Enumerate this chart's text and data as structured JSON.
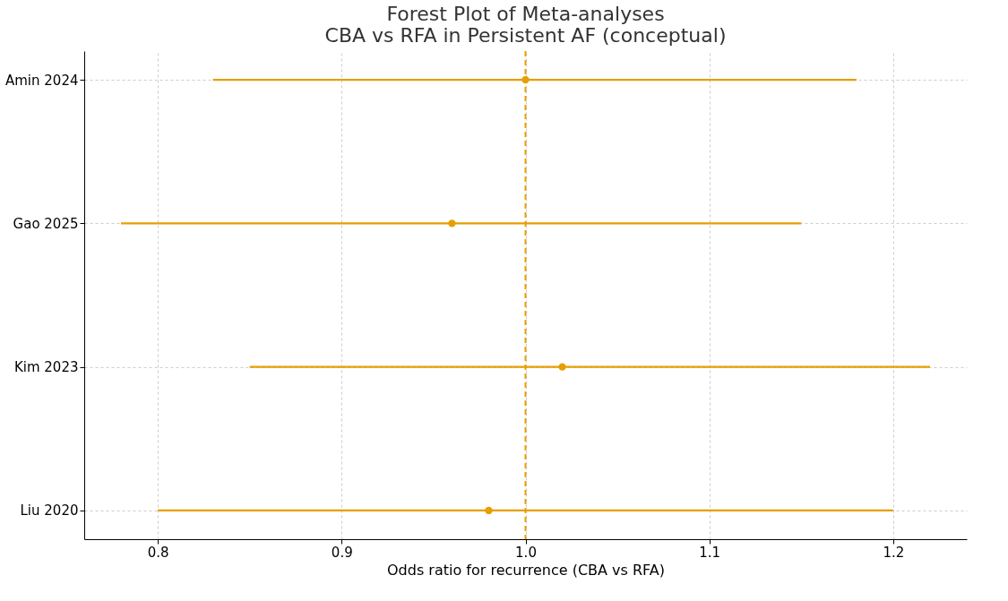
{
  "chart_data": {
    "type": "scatter",
    "orientation": "horizontal",
    "title": "Forest Plot of Meta-analyses",
    "subtitle": "CBA vs RFA in Persistent AF (conceptual)",
    "xlabel": "Odds ratio for recurrence (CBA vs RFA)",
    "categories": [
      "Amin 2024",
      "Gao 2025",
      "Kim 2023",
      "Liu 2020"
    ],
    "values": [
      1.0,
      0.96,
      1.02,
      0.98
    ],
    "errors": [
      [
        0.83,
        1.18
      ],
      [
        0.78,
        1.15
      ],
      [
        0.85,
        1.22
      ],
      [
        0.8,
        1.2
      ]
    ],
    "color": "#e69f00",
    "marker": "circle",
    "xlim": [
      0.76,
      1.24
    ],
    "xticks": [
      0.8,
      0.9,
      {
        "value": 1,
        "label": "1.0"
      },
      1.1,
      1.2
    ],
    "ref_lines": [
      {
        "axis": "x",
        "value": 1,
        "color": "#e69f00",
        "line_style": "dashed"
      }
    ],
    "grid": true
  }
}
